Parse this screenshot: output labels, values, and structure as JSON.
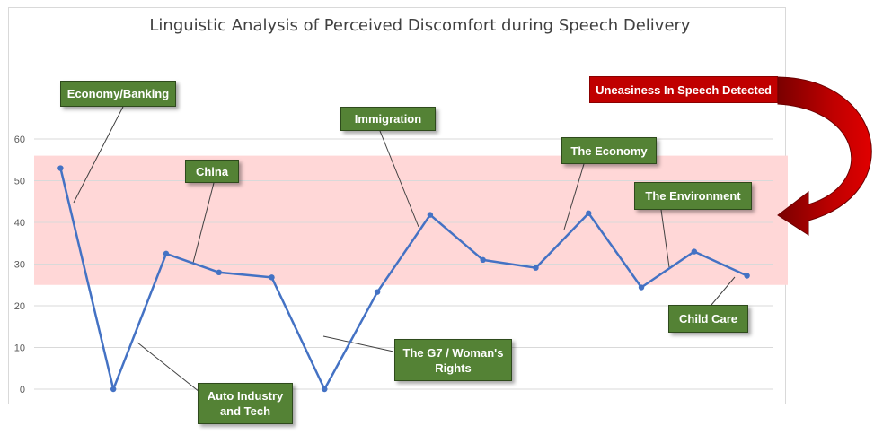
{
  "chart_data": {
    "type": "line",
    "title": "Linguistic Analysis of Perceived Discomfort during Speech Delivery",
    "xlabel": "",
    "ylabel": "",
    "ylim": [
      0,
      60
    ],
    "y_ticks": [
      "0",
      "10",
      "20",
      "30",
      "40",
      "50",
      "60"
    ],
    "grid": true,
    "series": [
      {
        "values": [
          53,
          0,
          32.5,
          28,
          26.8,
          0,
          23.3,
          41.8,
          31,
          29.1,
          42.2,
          24.4,
          33,
          27.2
        ]
      }
    ],
    "band": {
      "from": 25,
      "to": 56,
      "color": "#ffd7d7"
    },
    "line_color": "#4472c4",
    "annotations": [
      {
        "label": "Economy/Banking",
        "point": 0
      },
      {
        "label": "Auto Industry and Tech",
        "point": 1
      },
      {
        "label": "China",
        "point": 2
      },
      {
        "label": "The G7 / Woman's Rights",
        "point": 5
      },
      {
        "label": "Immigration",
        "point": 7
      },
      {
        "label": "The Economy",
        "point": 10
      },
      {
        "label": "The Environment",
        "point": 11
      },
      {
        "label": "Child Care",
        "point": 13
      }
    ],
    "alert_label": "Uneasiness In Speech Detected",
    "alert_color": "#c00000",
    "callout_color": "#548235"
  }
}
